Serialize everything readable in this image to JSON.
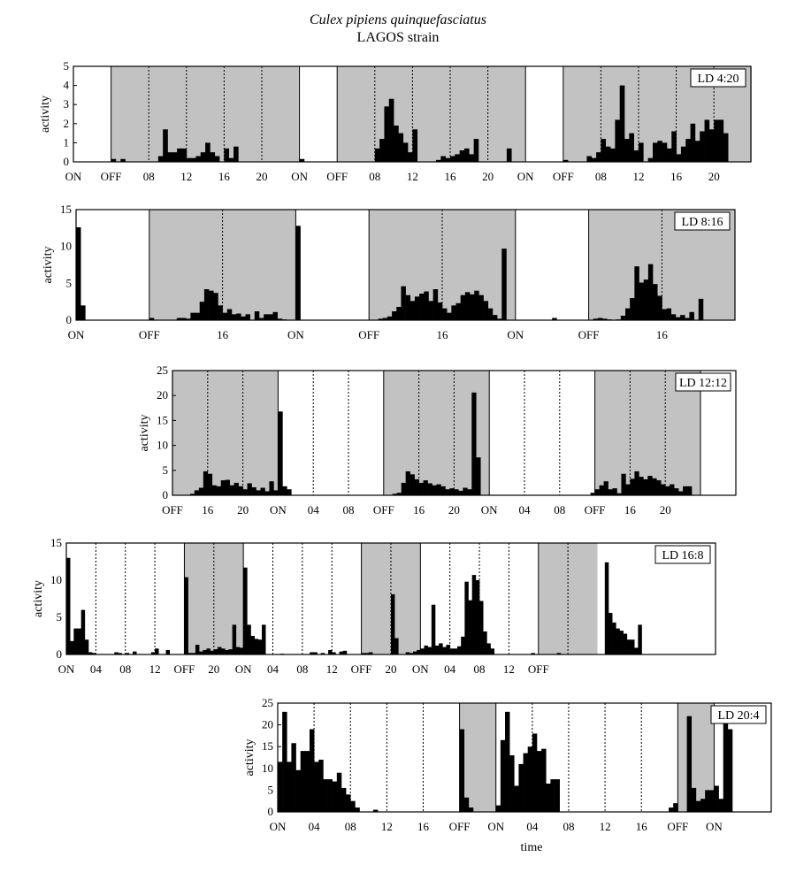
{
  "figure": {
    "title": "Culex pipiens quinquefasciatus",
    "subtitle": "LAGOS strain"
  },
  "colors": {
    "dark_phase": "#c2c2c2",
    "bars": "#000000",
    "frame": "#000000"
  },
  "chart_data": [
    {
      "type": "bar",
      "panel_label": "LD 4:20",
      "ylabel": "activity",
      "xlabel": "",
      "ylim": [
        0,
        5
      ],
      "yticks": [
        0,
        1,
        2,
        3,
        4,
        5
      ],
      "hours": 72,
      "bins_per_hour": 2,
      "dark_intervals": [
        [
          4,
          24
        ],
        [
          28,
          48
        ],
        [
          52,
          72
        ]
      ],
      "dotted_lines": [
        8,
        12,
        16,
        20,
        32,
        36,
        40,
        44,
        56,
        60,
        64,
        68
      ],
      "solid_lines": [
        0,
        4,
        24,
        28,
        48,
        52
      ],
      "x_tick_labels": [
        {
          "h": 0,
          "label": "ON"
        },
        {
          "h": 4,
          "label": "OFF"
        },
        {
          "h": 8,
          "label": "08"
        },
        {
          "h": 12,
          "label": "12"
        },
        {
          "h": 16,
          "label": "16"
        },
        {
          "h": 20,
          "label": "20"
        },
        {
          "h": 24,
          "label": "ON"
        },
        {
          "h": 28,
          "label": "OFF"
        },
        {
          "h": 32,
          "label": "08"
        },
        {
          "h": 36,
          "label": "12"
        },
        {
          "h": 40,
          "label": "16"
        },
        {
          "h": 44,
          "label": "20"
        },
        {
          "h": 48,
          "label": "ON"
        },
        {
          "h": 52,
          "label": "OFF"
        },
        {
          "h": 56,
          "label": "08"
        },
        {
          "h": 60,
          "label": "12"
        },
        {
          "h": 64,
          "label": "16"
        },
        {
          "h": 68,
          "label": "20"
        }
      ],
      "values": [
        0,
        0,
        0,
        0,
        0,
        0,
        0,
        0,
        0.15,
        0,
        0.15,
        0,
        0,
        0,
        0,
        0,
        0,
        0,
        0.3,
        1.7,
        0.5,
        0.5,
        0.7,
        0.7,
        0.2,
        0.2,
        0.3,
        0.5,
        1,
        0.5,
        0.3,
        0,
        0.7,
        0.2,
        0.8,
        0,
        0,
        0,
        0,
        0,
        0,
        0,
        0,
        0,
        0,
        0,
        0,
        0,
        0.15,
        0,
        0,
        0,
        0,
        0,
        0,
        0,
        0,
        0,
        0,
        0,
        0,
        0,
        0,
        0,
        0.7,
        1.2,
        2.9,
        3.3,
        1.9,
        1.5,
        1,
        0.5,
        1.7,
        0,
        0,
        0,
        0,
        0.1,
        0.3,
        0.2,
        0.3,
        0.4,
        0.6,
        0.7,
        0.4,
        1.2,
        0,
        0,
        0,
        0,
        0,
        0,
        0.7,
        0,
        0,
        0,
        0,
        0,
        0,
        0,
        0,
        0,
        0,
        0,
        0.1,
        0,
        0,
        0,
        0,
        0.3,
        0.2,
        0.5,
        1.2,
        0.8,
        0.7,
        2.2,
        4,
        1.2,
        1.5,
        0.6,
        1,
        0,
        0.2,
        1,
        1.1,
        1,
        0.7,
        1.6,
        0.4,
        0.8,
        1.2,
        2,
        1.1,
        1.6,
        2.2,
        1.7,
        2.2,
        2.2,
        1.5
      ]
    },
    {
      "type": "bar",
      "panel_label": "LD 8:16",
      "ylabel": "activity",
      "xlabel": "",
      "ylim": [
        0,
        15
      ],
      "yticks": [
        0,
        5,
        10,
        15
      ],
      "hours": 72,
      "bins_per_hour": 2,
      "dark_intervals": [
        [
          8,
          24
        ],
        [
          32,
          48
        ],
        [
          56,
          72
        ]
      ],
      "dotted_lines": [
        16,
        40,
        64
      ],
      "solid_lines": [
        0,
        8,
        24,
        32,
        48,
        56
      ],
      "x_tick_labels": [
        {
          "h": 0,
          "label": "ON"
        },
        {
          "h": 8,
          "label": "OFF"
        },
        {
          "h": 16,
          "label": "16"
        },
        {
          "h": 24,
          "label": "ON"
        },
        {
          "h": 32,
          "label": "OFF"
        },
        {
          "h": 40,
          "label": "16"
        },
        {
          "h": 48,
          "label": "ON"
        },
        {
          "h": 56,
          "label": "OFF"
        },
        {
          "h": 64,
          "label": "16"
        }
      ],
      "values": [
        12.6,
        2,
        0,
        0,
        0,
        0,
        0,
        0,
        0,
        0,
        0,
        0,
        0,
        0,
        0,
        0,
        0.3,
        0,
        0,
        0,
        0,
        0,
        0.3,
        0.3,
        0.2,
        1,
        1,
        2.5,
        4.2,
        4,
        3.7,
        2,
        1,
        1.5,
        0.8,
        0.9,
        0.5,
        0.8,
        0,
        1.2,
        0.3,
        0.8,
        0.8,
        1.1,
        0.2,
        0.1,
        0,
        0,
        12.8,
        0,
        0,
        0,
        0,
        0,
        0,
        0,
        0,
        0,
        0,
        0,
        0,
        0,
        0,
        0,
        0,
        0,
        0.2,
        0.3,
        0.5,
        1.2,
        1.8,
        4.6,
        3.4,
        2.6,
        3.2,
        3.6,
        3.9,
        2.6,
        4.2,
        2.4,
        1.6,
        1,
        2,
        2.3,
        3.4,
        3.8,
        3.5,
        4,
        3.4,
        2.6,
        1.6,
        0.7,
        0.2,
        9.7,
        0,
        0,
        0,
        0,
        0,
        0,
        0,
        0,
        0,
        0,
        0.3,
        0,
        0,
        0,
        0,
        0,
        0,
        0,
        0,
        0.2,
        0.3,
        0.2,
        0.1,
        0,
        0.1,
        0.6,
        1.6,
        3,
        7.3,
        5.1,
        5.5,
        7.6,
        4.9,
        3.3,
        1.5,
        1.6,
        0.8,
        0.4,
        0.7,
        0.3,
        1.1,
        0,
        2.9,
        0
      ]
    },
    {
      "type": "bar",
      "panel_label": "LD 12:12",
      "ylabel": "activity",
      "xlabel": "",
      "ylim": [
        0,
        25
      ],
      "yticks": [
        0,
        5,
        10,
        15,
        20,
        25
      ],
      "hours": 64,
      "bins_per_hour": 2,
      "dark_intervals": [
        [
          0,
          12
        ],
        [
          24,
          36
        ],
        [
          48,
          60
        ]
      ],
      "dotted_lines": [
        4,
        8,
        16,
        20,
        28,
        32,
        40,
        44,
        52,
        56
      ],
      "solid_lines": [
        0,
        12,
        24,
        36,
        48,
        60
      ],
      "x_tick_labels": [
        {
          "h": 0,
          "label": "OFF"
        },
        {
          "h": 4,
          "label": "16"
        },
        {
          "h": 8,
          "label": "20"
        },
        {
          "h": 12,
          "label": "ON"
        },
        {
          "h": 16,
          "label": "04"
        },
        {
          "h": 20,
          "label": "08"
        },
        {
          "h": 24,
          "label": "OFF"
        },
        {
          "h": 28,
          "label": "16"
        },
        {
          "h": 32,
          "label": "20"
        },
        {
          "h": 36,
          "label": "ON"
        },
        {
          "h": 40,
          "label": "04"
        },
        {
          "h": 44,
          "label": "08"
        },
        {
          "h": 48,
          "label": "OFF"
        },
        {
          "h": 52,
          "label": "16"
        },
        {
          "h": 56,
          "label": "20"
        }
      ],
      "values": [
        0,
        0,
        0,
        0,
        0.3,
        1,
        1.5,
        4.8,
        4.3,
        2,
        1.8,
        3,
        3.1,
        2,
        2.5,
        1.8,
        1.2,
        2.4,
        1.6,
        1,
        1.5,
        0.8,
        2.8,
        1,
        16.8,
        1.8,
        1.2,
        0,
        0,
        0,
        0,
        0,
        0,
        0,
        0,
        0,
        0,
        0,
        0,
        0,
        0,
        0,
        0,
        0,
        0,
        0,
        0,
        0,
        0,
        0,
        0.3,
        0.5,
        2.5,
        4.8,
        4.2,
        3.2,
        2.5,
        3,
        2.4,
        2,
        2.2,
        1.8,
        1.2,
        1.4,
        1.2,
        0.9,
        1.5,
        1.2,
        20.6,
        7.6,
        0,
        0,
        0,
        0,
        0,
        0,
        0,
        0,
        0,
        0,
        0,
        0,
        0,
        0,
        0,
        0,
        0,
        0,
        0,
        0,
        0,
        0,
        0,
        0,
        0,
        0.5,
        1.2,
        2,
        2.8,
        1.2,
        1.4,
        0.4,
        4.3,
        2.2,
        3.3,
        4.8,
        3.7,
        3.2,
        3.9,
        3.4,
        3,
        2.2,
        1.8,
        2.2,
        1.4,
        0.8,
        1.8,
        1.8
      ]
    },
    {
      "type": "bar",
      "panel_label": "LD 16:8",
      "ylabel": "activity",
      "xlabel": "",
      "ylim": [
        0,
        15
      ],
      "yticks": [
        0,
        5,
        10,
        15
      ],
      "hours": 88,
      "bins_per_hour": 2,
      "dark_intervals": [
        [
          16,
          24
        ],
        [
          40,
          48
        ],
        [
          64,
          72
        ]
      ],
      "dotted_lines": [
        4,
        8,
        12,
        20,
        28,
        32,
        36,
        44,
        52,
        56,
        60,
        68
      ],
      "solid_lines": [
        0,
        16,
        24,
        40,
        48,
        64
      ],
      "x_tick_labels": [
        {
          "h": 0,
          "label": "ON"
        },
        {
          "h": 4,
          "label": "04"
        },
        {
          "h": 8,
          "label": "08"
        },
        {
          "h": 12,
          "label": "12"
        },
        {
          "h": 16,
          "label": "OFF"
        },
        {
          "h": 20,
          "label": "20"
        },
        {
          "h": 24,
          "label": "ON"
        },
        {
          "h": 28,
          "label": "04"
        },
        {
          "h": 32,
          "label": "08"
        },
        {
          "h": 36,
          "label": "12"
        },
        {
          "h": 40,
          "label": "OFF"
        },
        {
          "h": 44,
          "label": "20"
        },
        {
          "h": 48,
          "label": "ON"
        },
        {
          "h": 52,
          "label": "04"
        },
        {
          "h": 56,
          "label": "08"
        },
        {
          "h": 60,
          "label": "12"
        },
        {
          "h": 64,
          "label": "OFF"
        }
      ],
      "values": [
        13,
        1.8,
        3.5,
        3.5,
        6,
        2,
        0.3,
        0.2,
        0,
        0,
        0,
        0,
        0,
        0.3,
        0.2,
        0,
        0.2,
        0,
        0.4,
        0,
        0,
        0,
        0,
        0.3,
        0.8,
        0,
        0,
        0.6,
        0,
        0,
        0,
        0,
        10.4,
        0.2,
        0.2,
        1.3,
        0.4,
        0.6,
        0.8,
        0.5,
        0.7,
        1,
        0.8,
        0.6,
        0.7,
        4,
        1,
        0.9,
        11.7,
        4,
        2.5,
        2.1,
        2,
        4,
        0,
        0,
        0,
        0,
        0.1,
        0,
        0,
        0,
        0,
        0,
        0,
        0,
        0.3,
        0.3,
        0,
        0.2,
        0,
        0.6,
        0.3,
        0,
        0.4,
        0.5,
        0,
        0,
        0,
        0,
        0.2,
        0.2,
        0.3,
        0,
        0,
        0,
        0,
        0,
        8.1,
        2.2,
        0,
        0,
        0.3,
        0.2,
        0.4,
        0.6,
        0.8,
        1.2,
        1,
        6.7,
        1.2,
        1.5,
        1,
        1.3,
        0.8,
        0.8,
        1.1,
        2.4,
        9.8,
        7.3,
        10.7,
        10,
        7.2,
        3.1,
        1.5,
        0.8,
        0,
        0,
        0,
        0,
        0,
        0,
        0,
        0,
        0,
        0,
        0.2,
        0,
        0,
        0,
        0,
        0,
        0,
        0.2,
        0,
        0,
        0,
        0,
        0,
        0,
        0,
        0,
        0,
        0,
        0,
        0,
        12.4,
        5.6,
        4.3,
        3.5,
        3.2,
        2.8,
        2,
        2,
        0.9,
        4
      ]
    },
    {
      "type": "bar",
      "panel_label": "LD 20:4",
      "ylabel": "activity",
      "xlabel": "time",
      "ylim": [
        0,
        25
      ],
      "yticks": [
        0,
        5,
        10,
        15,
        20,
        25
      ],
      "hours": 52,
      "bins_per_hour": 2,
      "dark_intervals": [
        [
          20,
          24
        ],
        [
          44,
          48
        ]
      ],
      "dotted_lines": [
        4,
        8,
        12,
        16,
        28,
        32,
        36,
        40
      ],
      "solid_lines": [
        0,
        20,
        24,
        44,
        48
      ],
      "x_tick_labels": [
        {
          "h": 0,
          "label": "ON"
        },
        {
          "h": 4,
          "label": "04"
        },
        {
          "h": 8,
          "label": "08"
        },
        {
          "h": 12,
          "label": "12"
        },
        {
          "h": 16,
          "label": "16"
        },
        {
          "h": 20,
          "label": "OFF"
        },
        {
          "h": 24,
          "label": "ON"
        },
        {
          "h": 28,
          "label": "04"
        },
        {
          "h": 32,
          "label": "08"
        },
        {
          "h": 36,
          "label": "12"
        },
        {
          "h": 40,
          "label": "16"
        },
        {
          "h": 44,
          "label": "OFF"
        },
        {
          "h": 48,
          "label": "ON"
        }
      ],
      "values": [
        11.5,
        23,
        11.5,
        15.8,
        9.6,
        14,
        14,
        19,
        11.5,
        12,
        7.5,
        7.5,
        7,
        9,
        5.5,
        4,
        2.5,
        1,
        0,
        0,
        0,
        0.5,
        0,
        0,
        0,
        0,
        0,
        0,
        0,
        0,
        0,
        0,
        0,
        0,
        0,
        0,
        0,
        0,
        0,
        0,
        19,
        3.3,
        1,
        0,
        0,
        0,
        0,
        0,
        1.5,
        16.5,
        23,
        13,
        6,
        11,
        13.5,
        15,
        18,
        14,
        14.5,
        6.5,
        7.5,
        7.5,
        0,
        0,
        0,
        0,
        0,
        0,
        0,
        0,
        0,
        0,
        0,
        0,
        0,
        0,
        0,
        0,
        0,
        0,
        0,
        0,
        0,
        0,
        0,
        0,
        1,
        2,
        0,
        0,
        22,
        5.5,
        2.5,
        3,
        5,
        5,
        6,
        3,
        23.5,
        19
      ]
    }
  ]
}
